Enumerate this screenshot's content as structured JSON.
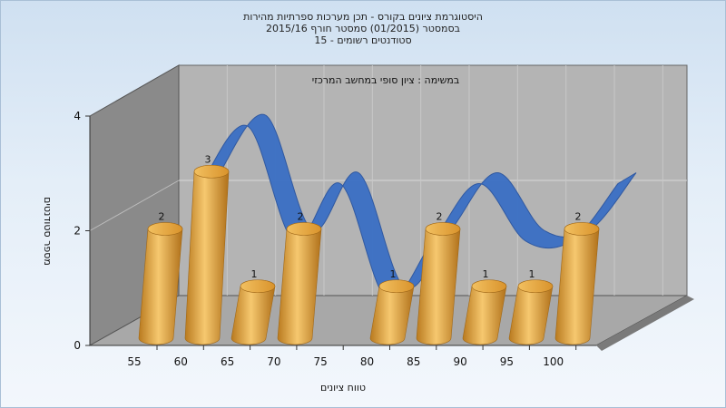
{
  "header": {
    "line1": "היסטוגרמת ציונים בקורס - תכן מערכות ספרתיות מהירות",
    "line2": "בסמסטר  (01/2015)  סמסטר חורף 2015/16",
    "line3": "סטודנטים רשומים - 15"
  },
  "colors": {
    "bar": "#e2a23e",
    "bar_dark": "#b97a1f",
    "bar_light": "#f3c26a",
    "ribbon": "#3a6fc4",
    "ribbon_alt": "#5c5c5c",
    "wall_back": "#b4b4b4",
    "wall_side": "#8a8a8a",
    "floor": "#a8a8a8"
  },
  "chart_data": {
    "type": "bar",
    "title": "במשימה : ציון סופי במחשב המרכזי",
    "xlabel": "טווח ציונים",
    "ylabel": "מספר סטודנטים",
    "categories": [
      "55",
      "60",
      "65",
      "70",
      "75",
      "80",
      "85",
      "90",
      "95",
      "100"
    ],
    "values": [
      2,
      3,
      1,
      2,
      0,
      1,
      2,
      1,
      1,
      2
    ],
    "data_labels": [
      "2",
      "3",
      "1",
      "2",
      "",
      "1",
      "2",
      "1",
      "1",
      "2"
    ],
    "yticks": [
      "0",
      "2",
      "4"
    ],
    "ylim": [
      0,
      4
    ],
    "grid": true,
    "legend": "none"
  }
}
